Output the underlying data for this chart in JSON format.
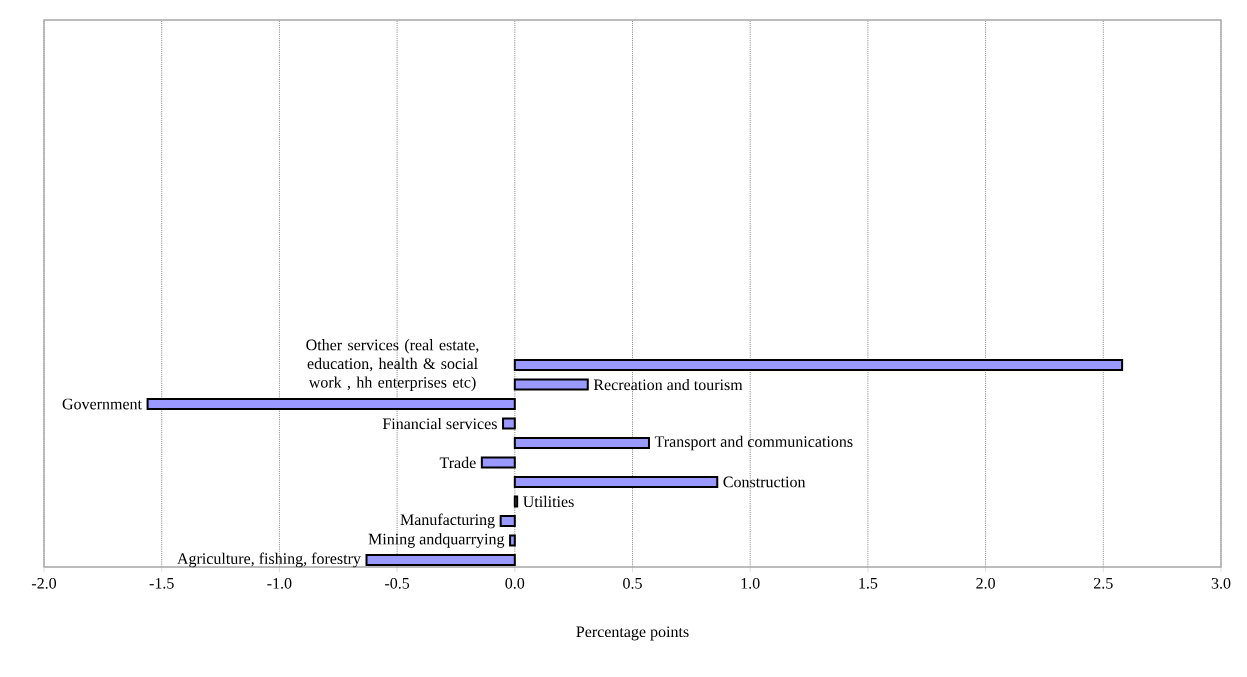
{
  "chart_data": {
    "type": "bar",
    "orientation": "horizontal",
    "categories": [
      "Other services (real estate, education, health & social work , hh enterprises etc)",
      "Recreation and tourism",
      "Government",
      "Financial services",
      "Transport and communications",
      "Trade",
      "Construction",
      "Utilities",
      "Manufacturing",
      "Mining andquarrying",
      "Agriculture, fishing, forestry"
    ],
    "values": [
      2.58,
      0.31,
      -1.56,
      -0.05,
      0.57,
      -0.14,
      0.86,
      0.01,
      -0.06,
      -0.02,
      -0.63
    ],
    "color": "#9999ff",
    "xlabel": "Percentage points",
    "xlim": [
      -2,
      3
    ],
    "xticks": [
      {
        "value": -2,
        "label": "-2.0"
      },
      {
        "value": -1.5,
        "label": "-1.5"
      },
      {
        "value": -1,
        "label": "-1.0"
      },
      {
        "value": -0.5,
        "label": "-0.5"
      },
      {
        "value": 0,
        "label": "0.0"
      },
      {
        "value": 0.5,
        "label": "0.5"
      },
      {
        "value": 1,
        "label": "1.0"
      },
      {
        "value": 1.5,
        "label": "1.5"
      },
      {
        "value": 2,
        "label": "2.0"
      },
      {
        "value": 2.5,
        "label": "2.5"
      },
      {
        "value": 3,
        "label": "3.0"
      }
    ],
    "grid": "x"
  }
}
